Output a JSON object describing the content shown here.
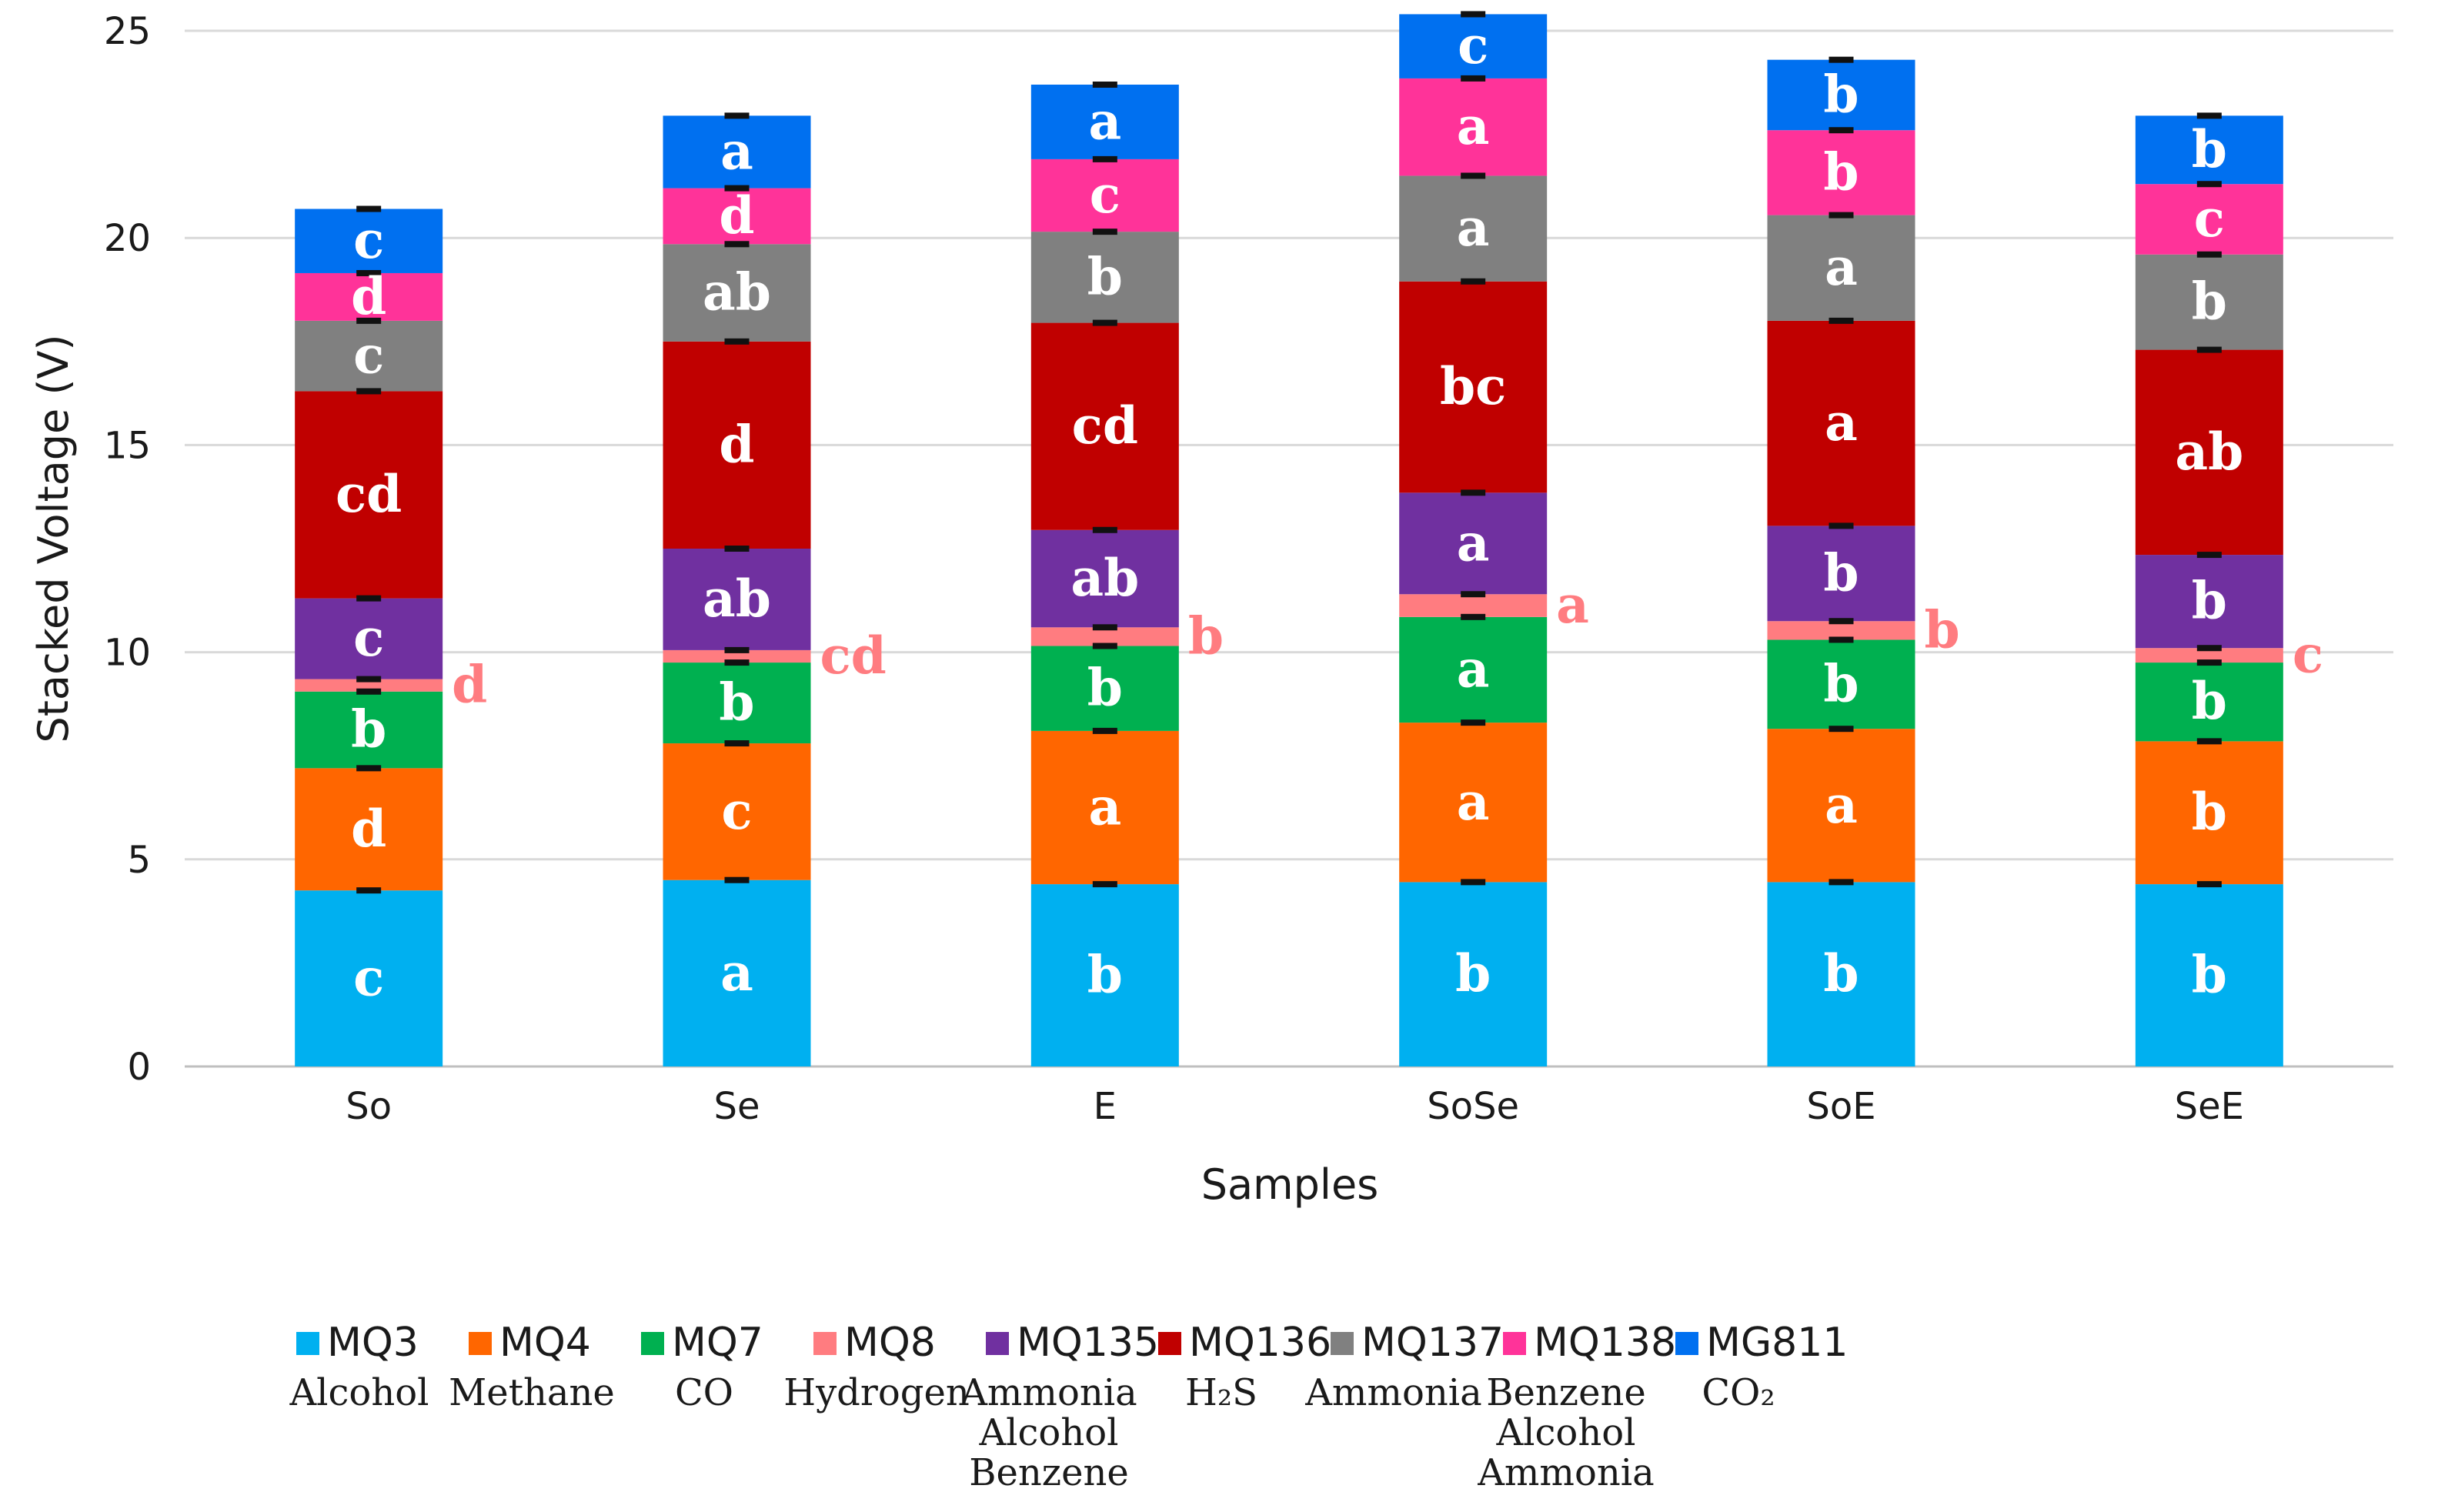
{
  "chart_data": {
    "type": "bar",
    "stacked": true,
    "title": "",
    "xlabel": "Samples",
    "ylabel": "Stacked Voltage (V)",
    "ylim": [
      0,
      25
    ],
    "yticks": [
      0,
      5,
      10,
      15,
      20,
      25
    ],
    "grid": true,
    "legend_position": "bottom",
    "categories": [
      "So",
      "Se",
      "E",
      "SoSe",
      "SoE",
      "SeE"
    ],
    "series": [
      {
        "name": "MQ3",
        "description": [
          "Alcohol"
        ],
        "color": "#00b0f0",
        "values": [
          4.25,
          4.5,
          4.4,
          4.45,
          4.45,
          4.4
        ],
        "letters": [
          "c",
          "a",
          "b",
          "b",
          "b",
          "b"
        ],
        "letter_color": "#ffffff"
      },
      {
        "name": "MQ4",
        "description": [
          "Methane"
        ],
        "color": "#ff6600",
        "values": [
          2.95,
          3.3,
          3.7,
          3.85,
          3.7,
          3.45
        ],
        "letters": [
          "d",
          "c",
          "a",
          "a",
          "a",
          "b"
        ],
        "letter_color": "#ffffff"
      },
      {
        "name": "MQ7",
        "description": [
          "CO"
        ],
        "color": "#00b050",
        "values": [
          1.85,
          1.95,
          2.05,
          2.55,
          2.15,
          1.9
        ],
        "letters": [
          "b",
          "b",
          "b",
          "a",
          "b",
          "b"
        ],
        "letter_color": "#ffffff"
      },
      {
        "name": "MQ8",
        "description": [
          "Hydrogen"
        ],
        "color": "#ff7c80",
        "values": [
          0.3,
          0.3,
          0.45,
          0.55,
          0.45,
          0.35
        ],
        "letters": [
          "d",
          "cd",
          "b",
          "a",
          "b",
          "c"
        ],
        "letter_color": "#ff7c80",
        "letters_outside": true
      },
      {
        "name": "MQ135",
        "description": [
          "Ammonia",
          "Alcohol",
          "Benzene"
        ],
        "color": "#7030a0",
        "values": [
          1.95,
          2.45,
          2.35,
          2.45,
          2.3,
          2.25
        ],
        "letters": [
          "c",
          "ab",
          "ab",
          "a",
          "b",
          "b"
        ],
        "letter_color": "#ffffff"
      },
      {
        "name": "MQ136",
        "description": [
          "H₂S"
        ],
        "color": "#c00000",
        "values": [
          5.0,
          5.0,
          5.0,
          5.1,
          4.95,
          4.95
        ],
        "letters": [
          "cd",
          "d",
          "cd",
          "bc",
          "a",
          "ab"
        ],
        "letter_color": "#ffffff"
      },
      {
        "name": "MQ137",
        "description": [
          "Ammonia"
        ],
        "color": "#808080",
        "values": [
          1.7,
          2.35,
          2.2,
          2.55,
          2.55,
          2.3
        ],
        "letters": [
          "c",
          "ab",
          "b",
          "a",
          "a",
          "b"
        ],
        "letter_color": "#ffffff"
      },
      {
        "name": "MQ138",
        "description": [
          "Benzene",
          "Alcohol",
          "Ammonia"
        ],
        "color": "#ff3399",
        "values": [
          1.15,
          1.35,
          1.75,
          2.35,
          2.05,
          1.7
        ],
        "letters": [
          "d",
          "d",
          "c",
          "a",
          "b",
          "c"
        ],
        "letter_color": "#ffffff"
      },
      {
        "name": "MG811",
        "description": [
          "CO₂"
        ],
        "color": "#0070f0",
        "values": [
          1.55,
          1.75,
          1.8,
          1.55,
          1.7,
          1.65
        ],
        "letters": [
          "c",
          "a",
          "a",
          "c",
          "b",
          "b"
        ],
        "letter_color": "#ffffff"
      }
    ]
  }
}
